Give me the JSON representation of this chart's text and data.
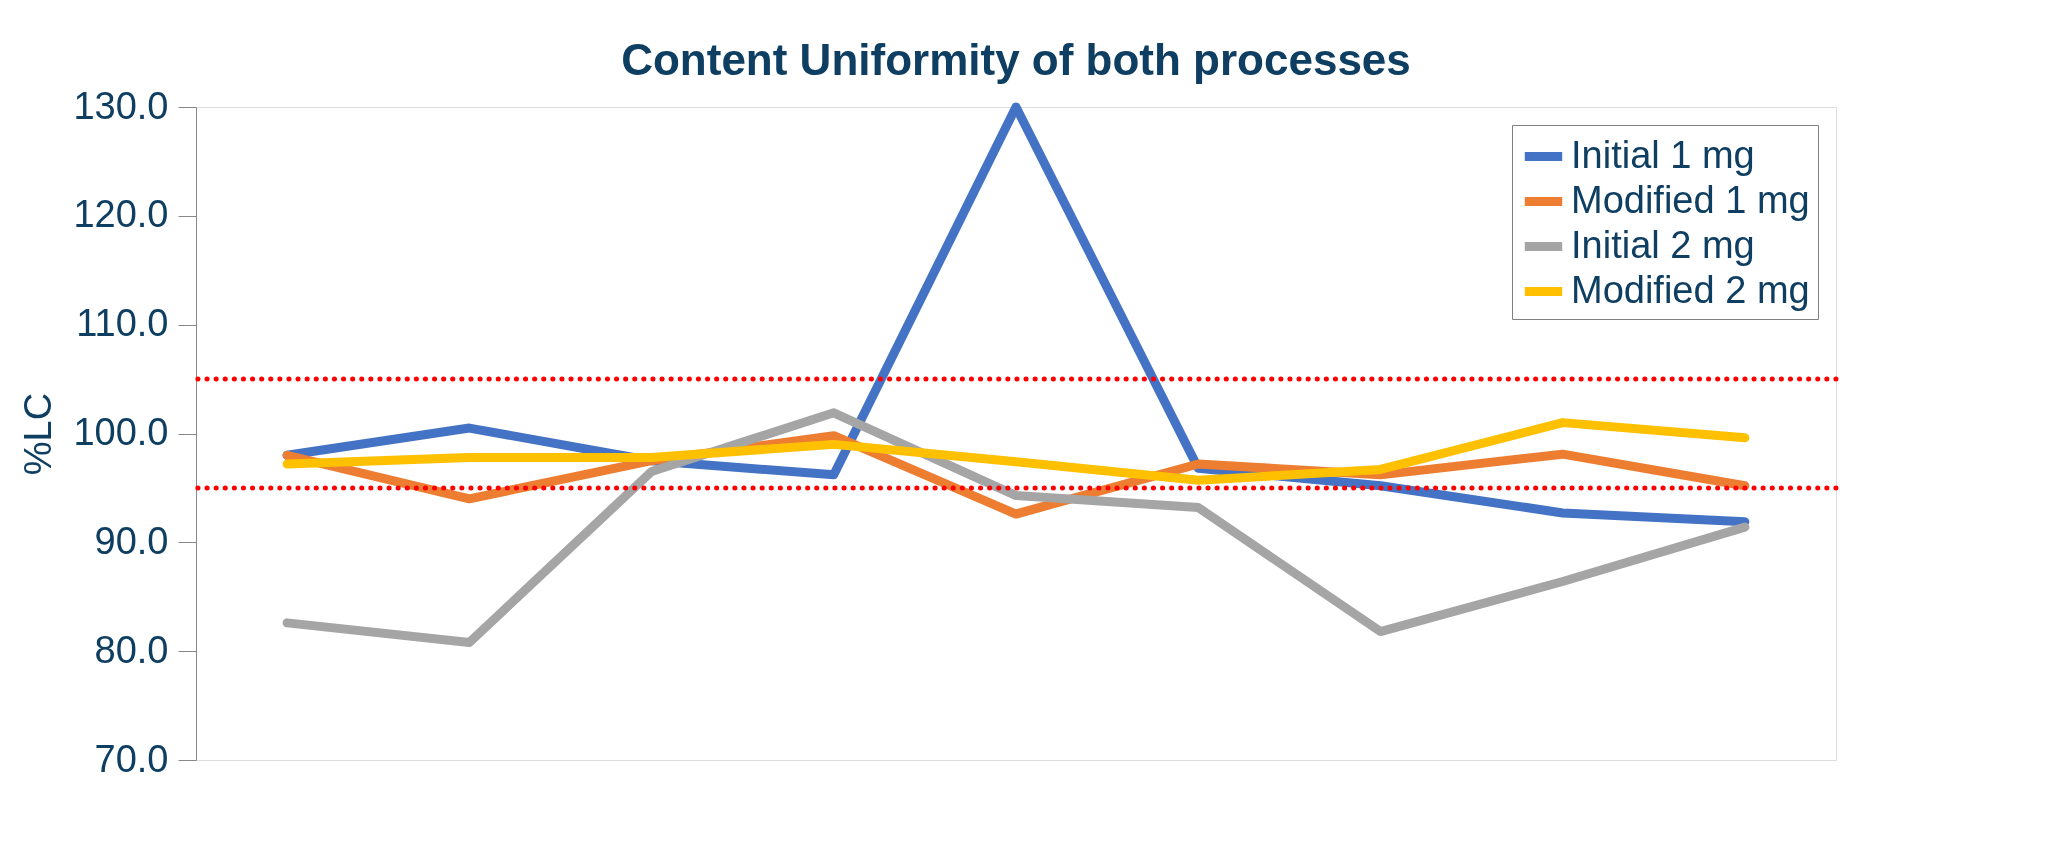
{
  "chart_data": {
    "type": "line",
    "title": "Content Uniformity of both processes",
    "ylabel": "%LC",
    "categories": [
      null,
      null,
      null,
      null,
      null,
      null,
      null,
      null,
      null
    ],
    "series": [
      {
        "name": "Initial 1 mg",
        "color": "#4472c4",
        "values": [
          98.0,
          100.5,
          97.5,
          96.2,
          130.0,
          96.8,
          95.2,
          92.7,
          91.9
        ]
      },
      {
        "name": "Modified 1 mg",
        "color": "#ed7d31",
        "values": [
          98.0,
          94.0,
          97.5,
          99.8,
          92.6,
          97.2,
          96.2,
          98.1,
          95.2
        ]
      },
      {
        "name": "Initial 2 mg",
        "color": "#a5a5a5",
        "values": [
          82.6,
          80.8,
          96.5,
          101.9,
          94.3,
          93.2,
          81.8,
          86.4,
          91.4
        ]
      },
      {
        "name": "Modified 2 mg",
        "color": "#ffc000",
        "values": [
          97.2,
          97.8,
          97.8,
          99.0,
          97.4,
          95.7,
          96.7,
          101.0,
          99.6
        ]
      }
    ],
    "ylim": [
      70,
      130
    ],
    "yticks": [
      {
        "value": 70,
        "label": "70.0"
      },
      {
        "value": 80,
        "label": "80.0"
      },
      {
        "value": 90,
        "label": "90.0"
      },
      {
        "value": 100,
        "label": "100.0"
      },
      {
        "value": 110,
        "label": "110.0"
      },
      {
        "value": 120,
        "label": "120.0"
      },
      {
        "value": 130,
        "label": "130.0"
      }
    ],
    "ref_lines": [
      {
        "axis": "y",
        "value": 105,
        "color": "#ff0000",
        "line_style": "dotted"
      },
      {
        "axis": "y",
        "value": 95,
        "color": "#ff0000",
        "line_style": "dotted"
      }
    ],
    "grid": false,
    "legend": "top right",
    "marker": "none",
    "line_style": "solid",
    "tick_labels": "y"
  }
}
